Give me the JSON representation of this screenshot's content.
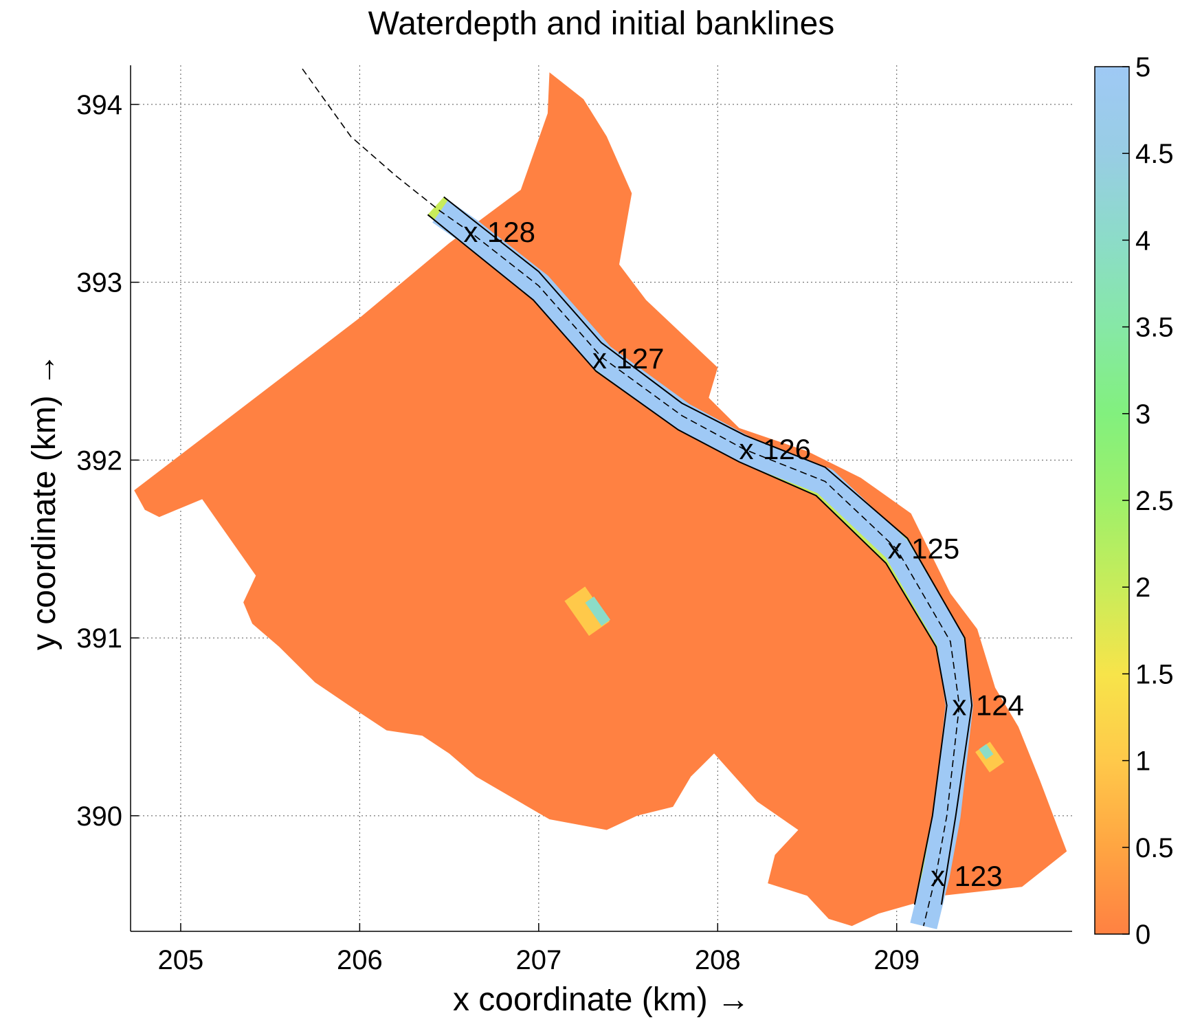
{
  "chart_data": {
    "type": "heatmap",
    "title": "Waterdepth and initial banklines",
    "xlabel": "x coordinate (km) →",
    "ylabel": "y coordinate (km) →",
    "xlim": [
      204.72,
      209.98
    ],
    "ylim": [
      389.35,
      394.22
    ],
    "xticks": [
      205,
      206,
      207,
      208,
      209
    ],
    "yticks": [
      390,
      391,
      392,
      393,
      394
    ],
    "grid": true,
    "colorbar": {
      "range": [
        0,
        5
      ],
      "ticks": [
        "0",
        "0.5",
        "1",
        "1.5",
        "2",
        "2.5",
        "3",
        "3.5",
        "4",
        "4.5",
        "5"
      ],
      "colors": [
        "#ff8142",
        "#ffa542",
        "#ffc94a",
        "#f7e44a",
        "#c8ec5a",
        "#9ef06a",
        "#82f07e",
        "#86e8a6",
        "#8cdcc8",
        "#98cde4",
        "#9fc9f5"
      ]
    },
    "floodplain_depth": 0,
    "channel_depth": 5,
    "floodplain_color": "#ff8142",
    "channel_color": "#9fc9f5",
    "bankline_color": "#000000",
    "centerline": [
      [
        205.68,
        394.2
      ],
      [
        205.95,
        393.82
      ],
      [
        206.2,
        393.6
      ],
      [
        206.45,
        393.4
      ],
      [
        206.62,
        393.28
      ],
      [
        207.0,
        392.98
      ],
      [
        207.35,
        392.58
      ],
      [
        207.8,
        392.25
      ],
      [
        208.15,
        392.06
      ],
      [
        208.6,
        391.88
      ],
      [
        209.0,
        391.5
      ],
      [
        209.3,
        390.98
      ],
      [
        209.35,
        390.62
      ],
      [
        209.28,
        390.0
      ],
      [
        209.22,
        389.67
      ],
      [
        209.15,
        389.38
      ]
    ],
    "river_km_markers": [
      {
        "label": "128",
        "x": 206.62,
        "y": 393.28
      },
      {
        "label": "127",
        "x": 207.34,
        "y": 392.57
      },
      {
        "label": "126",
        "x": 208.16,
        "y": 392.06
      },
      {
        "label": "125",
        "x": 208.99,
        "y": 391.5
      },
      {
        "label": "124",
        "x": 209.35,
        "y": 390.62
      },
      {
        "label": "123",
        "x": 209.23,
        "y": 389.66
      }
    ],
    "marker_symbol": "x",
    "floodplain_outline": [
      [
        204.74,
        391.83
      ],
      [
        206.0,
        392.8
      ],
      [
        206.5,
        393.22
      ],
      [
        206.9,
        393.52
      ],
      [
        207.05,
        393.95
      ],
      [
        207.06,
        394.18
      ],
      [
        207.25,
        394.03
      ],
      [
        207.38,
        393.82
      ],
      [
        207.52,
        393.5
      ],
      [
        207.45,
        393.1
      ],
      [
        207.6,
        392.9
      ],
      [
        208.0,
        392.52
      ],
      [
        207.95,
        392.35
      ],
      [
        208.12,
        392.18
      ],
      [
        208.5,
        392.05
      ],
      [
        208.8,
        391.9
      ],
      [
        209.08,
        391.7
      ],
      [
        209.3,
        391.25
      ],
      [
        209.45,
        391.05
      ],
      [
        209.55,
        390.72
      ],
      [
        209.68,
        390.5
      ],
      [
        209.8,
        390.2
      ],
      [
        209.95,
        389.8
      ],
      [
        209.7,
        389.6
      ],
      [
        209.25,
        389.55
      ],
      [
        208.9,
        389.45
      ],
      [
        208.75,
        389.38
      ],
      [
        208.62,
        389.42
      ],
      [
        208.5,
        389.55
      ],
      [
        208.28,
        389.62
      ],
      [
        208.32,
        389.78
      ],
      [
        208.45,
        389.92
      ],
      [
        208.22,
        390.08
      ],
      [
        207.98,
        390.35
      ],
      [
        207.85,
        390.22
      ],
      [
        207.75,
        390.05
      ],
      [
        207.55,
        390.0
      ],
      [
        207.38,
        389.92
      ],
      [
        207.06,
        389.98
      ],
      [
        206.65,
        390.22
      ],
      [
        206.5,
        390.35
      ],
      [
        206.35,
        390.45
      ],
      [
        206.15,
        390.48
      ],
      [
        206.0,
        390.58
      ],
      [
        205.75,
        390.75
      ],
      [
        205.55,
        390.95
      ],
      [
        205.4,
        391.08
      ],
      [
        205.35,
        391.2
      ],
      [
        205.42,
        391.35
      ],
      [
        205.28,
        391.55
      ],
      [
        205.12,
        391.78
      ],
      [
        205.0,
        391.73
      ],
      [
        204.88,
        391.68
      ],
      [
        204.8,
        391.72
      ]
    ],
    "channel_left_bank": [
      [
        206.47,
        393.48
      ],
      [
        206.62,
        393.36
      ],
      [
        207.0,
        393.06
      ],
      [
        207.35,
        392.66
      ],
      [
        207.8,
        392.32
      ],
      [
        208.15,
        392.14
      ],
      [
        208.6,
        391.96
      ],
      [
        209.06,
        391.56
      ],
      [
        209.38,
        391.0
      ],
      [
        209.42,
        390.62
      ],
      [
        209.33,
        390.0
      ],
      [
        209.25,
        389.5
      ]
    ],
    "channel_right_bank": [
      [
        206.38,
        393.38
      ],
      [
        206.6,
        393.2
      ],
      [
        206.97,
        392.9
      ],
      [
        207.32,
        392.5
      ],
      [
        207.78,
        392.17
      ],
      [
        208.12,
        391.99
      ],
      [
        208.55,
        391.8
      ],
      [
        208.94,
        391.42
      ],
      [
        209.22,
        390.95
      ],
      [
        209.28,
        390.62
      ],
      [
        209.2,
        390.0
      ],
      [
        209.1,
        389.5
      ]
    ],
    "shallow_patches": [
      {
        "cx": 207.27,
        "cy": 391.15,
        "w": 0.14,
        "h": 0.24,
        "depth": 1.0
      },
      {
        "cx": 207.33,
        "cy": 391.15,
        "w": 0.06,
        "h": 0.16,
        "depth": 4.2
      },
      {
        "cx": 209.52,
        "cy": 390.33,
        "w": 0.1,
        "h": 0.14,
        "depth": 1.2
      },
      {
        "cx": 209.5,
        "cy": 390.36,
        "w": 0.05,
        "h": 0.07,
        "depth": 4.2
      }
    ]
  }
}
